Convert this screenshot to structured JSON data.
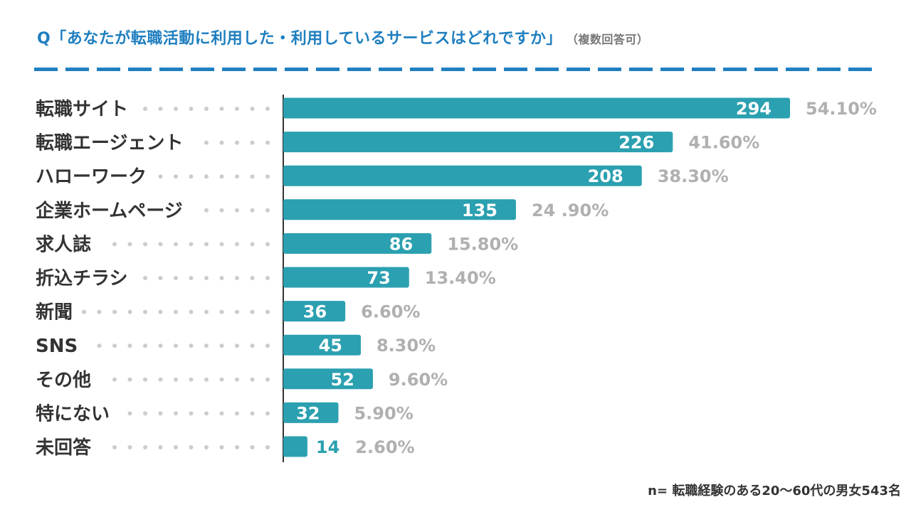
{
  "title": "Q「あなたが転職活動に利用した・利用しているサービスはどれですか」",
  "title_note": "（複数回答可）",
  "footnote": "n= 転職経験のある20〜60代の男女543名",
  "colors": {
    "title": "#1f7fc0",
    "bar": "#2ba0b0",
    "percent_text": "#b0b0b0",
    "label_text": "#333333",
    "dots": "#cccccc"
  },
  "chart_data": {
    "type": "bar",
    "orientation": "horizontal",
    "categories": [
      "転職サイト",
      "転職エージェント",
      "ハローワーク",
      "企業ホームページ",
      "求人誌",
      "折込チラシ",
      "新聞",
      "SNS",
      "その他",
      "特にない",
      "未回答"
    ],
    "values": [
      294,
      226,
      208,
      135,
      86,
      73,
      36,
      45,
      52,
      32,
      14
    ],
    "percent_labels": [
      "54.10%",
      "41.60%",
      "38.30%",
      "24 .90%",
      "15.80%",
      "13.40%",
      "6.60%",
      "8.30%",
      "9.60%",
      "5.90%",
      "2.60%"
    ],
    "grid": false,
    "legend": "none"
  }
}
